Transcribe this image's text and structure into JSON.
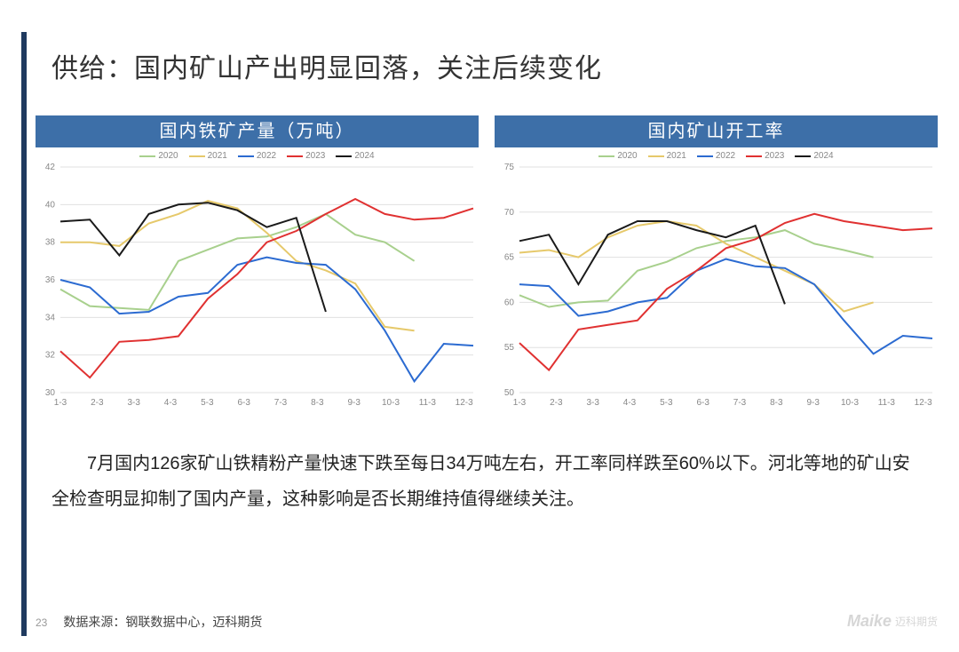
{
  "page": {
    "title": "供给：国内矿山产出明显回落，关注后续变化",
    "body": "7月国内126家矿山铁精粉产量快速下跌至每日34万吨左右，开工率同样跌至60%以下。河北等地的矿山安全检查明显抑制了国内产量，这种影响是否长期维持值得继续关注。",
    "page_number": "23",
    "source": "数据来源：钢联数据中心，迈科期货",
    "brand": "Maike",
    "brand_sub": "迈科期货"
  },
  "colors": {
    "accent_bar": "#1f3a5f",
    "chart_header_bg": "#3d6fa8",
    "chart_header_fg": "#ffffff",
    "grid": "#e0e0e0",
    "axis_text": "#888888",
    "bg": "#ffffff"
  },
  "legend": {
    "labels": [
      "2020",
      "2021",
      "2022",
      "2023",
      "2024"
    ],
    "colors": [
      "#a8d08d",
      "#e6c96b",
      "#2c6bd1",
      "#e03131",
      "#1a1a1a"
    ]
  },
  "chart_left": {
    "title": "国内铁矿产量（万吨）",
    "type": "line",
    "x_labels": [
      "1-3",
      "2-3",
      "3-3",
      "4-3",
      "5-3",
      "6-3",
      "7-3",
      "8-3",
      "9-3",
      "10-3",
      "11-3",
      "12-3"
    ],
    "x_points": 13,
    "ylim": [
      30,
      42
    ],
    "ytick_step": 2,
    "line_width": 2,
    "series": {
      "2020": [
        35.5,
        34.6,
        34.5,
        34.4,
        37.0,
        37.6,
        38.2,
        38.3,
        38.8,
        39.5,
        38.4,
        38.0,
        37.0
      ],
      "2021": [
        38.0,
        38.0,
        37.8,
        39.0,
        39.5,
        40.2,
        39.8,
        38.5,
        37.0,
        36.5,
        35.8,
        33.5,
        33.3
      ],
      "2022": [
        36.0,
        35.6,
        34.2,
        34.3,
        35.1,
        35.3,
        36.8,
        37.2,
        36.9,
        36.8,
        35.5,
        33.3,
        30.6,
        32.6,
        32.5
      ],
      "2023": [
        32.2,
        30.8,
        32.7,
        32.8,
        33.0,
        35.0,
        36.3,
        38.0,
        38.6,
        39.5,
        40.3,
        39.5,
        39.2,
        39.3,
        39.8
      ],
      "2024": [
        39.1,
        39.2,
        37.3,
        39.5,
        40.0,
        40.1,
        39.7,
        38.8,
        39.3,
        34.3
      ]
    }
  },
  "chart_right": {
    "title": "国内矿山开工率",
    "type": "line",
    "x_labels": [
      "1-3",
      "2-3",
      "3-3",
      "4-3",
      "5-3",
      "6-3",
      "7-3",
      "8-3",
      "9-3",
      "10-3",
      "11-3",
      "12-3"
    ],
    "x_points": 13,
    "ylim": [
      50,
      75
    ],
    "ytick_step": 5,
    "line_width": 2,
    "series": {
      "2020": [
        60.8,
        59.5,
        60.0,
        60.2,
        63.5,
        64.5,
        66.0,
        66.8,
        67.2,
        68.0,
        66.5,
        65.8,
        65.0
      ],
      "2021": [
        65.5,
        65.8,
        65.0,
        67.2,
        68.5,
        69.0,
        68.5,
        66.5,
        65.0,
        63.5,
        62.0,
        59.0,
        60.0
      ],
      "2022": [
        62.0,
        61.8,
        58.5,
        59.0,
        60.0,
        60.5,
        63.5,
        64.8,
        64.0,
        63.8,
        62.0,
        58.0,
        54.3,
        56.3,
        56.0
      ],
      "2023": [
        55.5,
        52.5,
        57.0,
        57.5,
        58.0,
        61.5,
        63.5,
        66.0,
        67.0,
        68.8,
        69.8,
        69.0,
        68.5,
        68.0,
        68.2
      ],
      "2024": [
        66.8,
        67.5,
        62.0,
        67.5,
        69.0,
        69.0,
        68.0,
        67.2,
        68.5,
        59.8
      ]
    }
  }
}
